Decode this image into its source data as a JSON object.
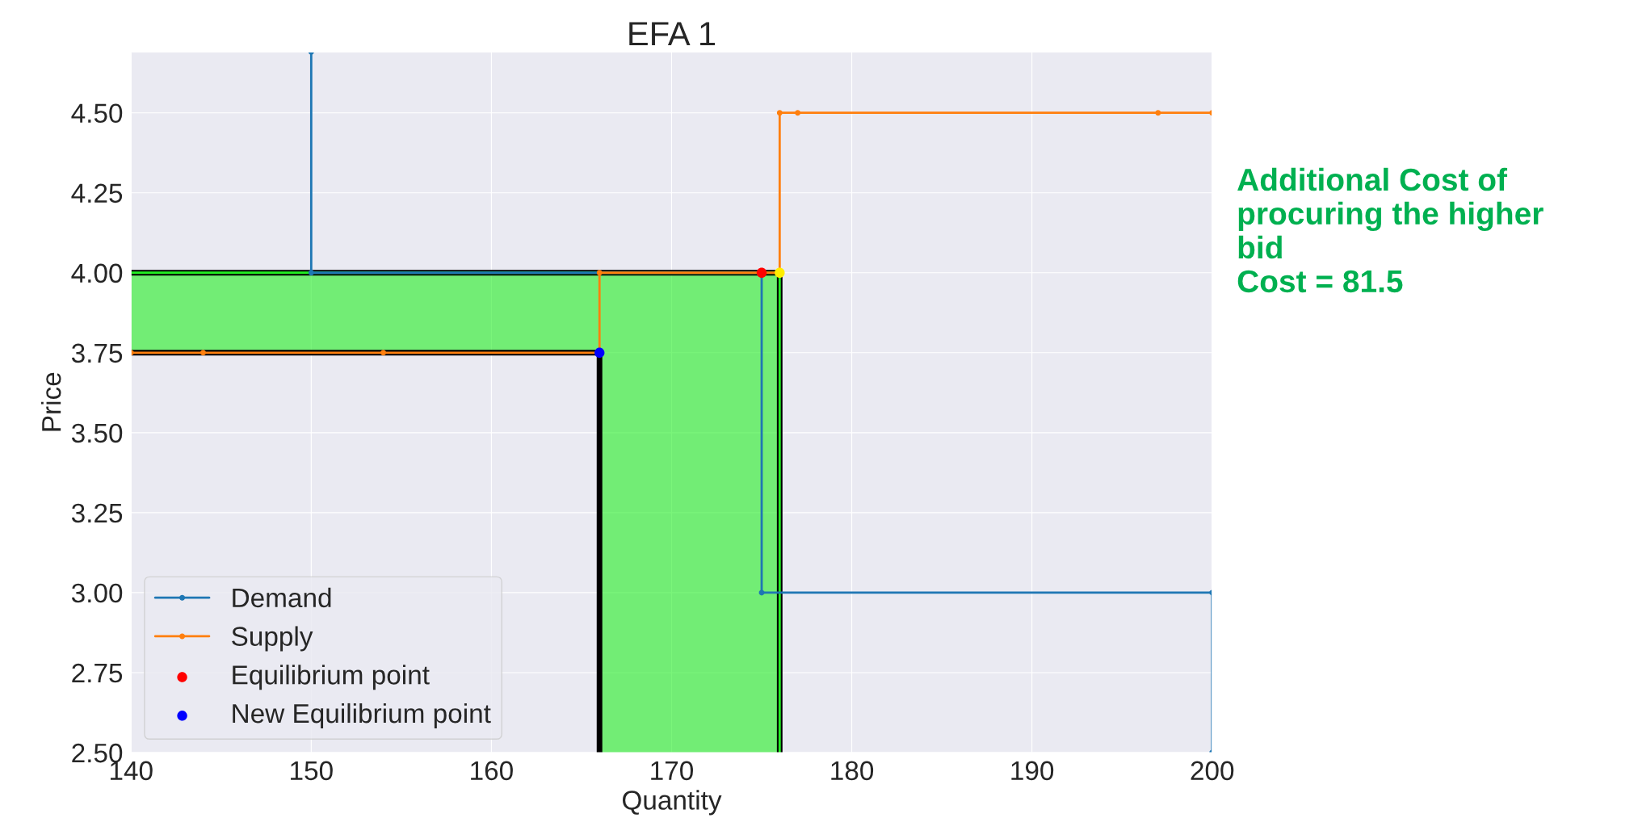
{
  "chart_data": {
    "type": "line",
    "title": "EFA 1",
    "xlabel": "Quantity",
    "ylabel": "Price",
    "xlim": [
      140,
      200
    ],
    "xticks": [
      140,
      150,
      160,
      170,
      180,
      190,
      200
    ],
    "ylim": [
      2.5,
      4.69
    ],
    "yticks": [
      {
        "value": 2.5,
        "label": "2.50"
      },
      {
        "value": 2.75,
        "label": "2.75"
      },
      {
        "value": 3.0,
        "label": "3.00"
      },
      {
        "value": 3.25,
        "label": "3.25"
      },
      {
        "value": 3.5,
        "label": "3.50"
      },
      {
        "value": 3.75,
        "label": "3.75"
      },
      {
        "value": 4.0,
        "label": "4.00"
      },
      {
        "value": 4.25,
        "label": "4.25"
      },
      {
        "value": 4.5,
        "label": "4.50"
      }
    ],
    "grid": true,
    "legend": "bottom left",
    "series": [
      {
        "type": "line",
        "color": "#22ee22",
        "x": [
          140,
          166,
          166,
          176,
          176
        ],
        "values": [
          4.0,
          4.0,
          4.0,
          4.0,
          2.5
        ],
        "lower": [
          3.75,
          3.75,
          2.5,
          2.5,
          2.5
        ],
        "upper": [
          4.0,
          4.0,
          4.0,
          4.0,
          4.0
        ]
      },
      {
        "type": "line",
        "color": "#000000",
        "x": [
          140,
          176,
          176
        ],
        "values": [
          4.0,
          4.0,
          2.5
        ]
      },
      {
        "type": "line",
        "color": "#000000",
        "x": [
          140,
          166,
          166
        ],
        "values": [
          3.75,
          3.75,
          2.5
        ]
      },
      {
        "name": "Demand",
        "marker": "circle",
        "color": "#1f77b4",
        "x": [
          150,
          150,
          175,
          175,
          200,
          200
        ],
        "values": [
          4.69,
          4.0,
          4.0,
          3.0,
          3.0,
          2.5
        ]
      },
      {
        "name": "Supply",
        "marker": "circle",
        "color": "#ff7f0e",
        "x": [
          140,
          144,
          154,
          166,
          166,
          176,
          176,
          177,
          197,
          200
        ],
        "values": [
          3.75,
          3.75,
          3.75,
          3.75,
          4.0,
          4.0,
          4.5,
          4.5,
          4.5,
          4.5
        ]
      },
      {
        "name": "Equilibrium point",
        "type": "scatter",
        "color": "#ff0000",
        "x": [
          175
        ],
        "values": [
          4.0
        ]
      },
      {
        "name": "New Equilibrium point",
        "type": "scatter",
        "color": "#0000ff",
        "x": [
          166
        ],
        "values": [
          3.75
        ]
      },
      {
        "type": "scatter",
        "color": "#ffee00",
        "x": [
          176
        ],
        "values": [
          4.0
        ]
      }
    ],
    "annotations": [
      "Additional Cost of\nprocuring the higher\nbid\nCost = 81.5"
    ]
  }
}
